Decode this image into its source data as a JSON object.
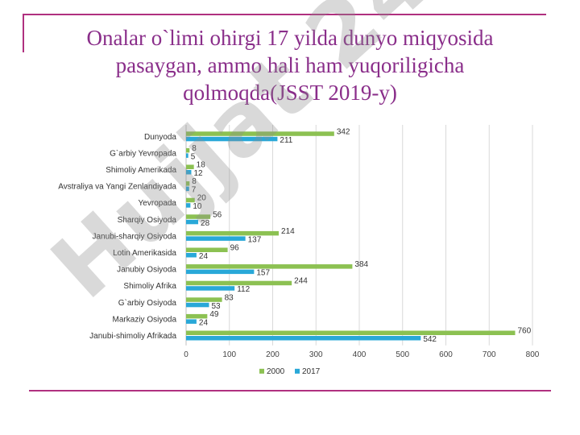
{
  "slide": {
    "title_lines": [
      "Onalar o`limi ohirgi 17 yilda dunyo miqyosida",
      "pasaygan, ammo hali ham yuqoriligicha",
      "qolmoqda(JSST 2019-y)"
    ],
    "title_color": "#8a2e8a",
    "frame_color": "#b0307f"
  },
  "watermark": {
    "text": "Hujjat 24",
    "color": "#9a9a9a"
  },
  "chart_data": {
    "type": "bar",
    "orientation": "horizontal",
    "categories": [
      "Dunyoda",
      "G`arbiy Yevropada",
      "Shimoliy Amerikada",
      "Avstraliya va Yangi Zenlandiyada",
      "Yevropada",
      "Sharqiy Osiyoda",
      "Janubi-sharqiy Osiyoda",
      "Lotin Amerikasida",
      "Janubiy Osiyoda",
      "Shimoliy Afrika",
      "G`arbiy Osiyoda",
      "Markaziy Osiyoda",
      "Janubi-shimoliy Afrikada"
    ],
    "series": [
      {
        "name": "2000",
        "color": "#8cc152",
        "values": [
          342,
          8,
          18,
          8,
          20,
          56,
          214,
          96,
          384,
          244,
          83,
          49,
          760
        ]
      },
      {
        "name": "2017",
        "color": "#29a8d8",
        "values": [
          211,
          5,
          12,
          7,
          10,
          28,
          137,
          24,
          157,
          112,
          53,
          24,
          542
        ]
      }
    ],
    "xlim": [
      0,
      800
    ],
    "xticks": [
      "0",
      "100",
      "200",
      "300",
      "400",
      "500",
      "600",
      "700",
      "800"
    ],
    "grid": true,
    "legend_position": "bottom"
  }
}
